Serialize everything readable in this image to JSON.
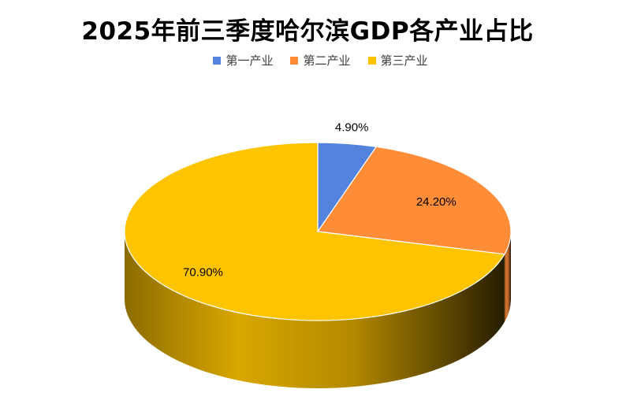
{
  "title": "2025年前三季度哈尔滨GDP各产业占比",
  "chart_data": {
    "type": "pie",
    "title": "2025年前三季度哈尔滨GDP各产业占比",
    "categories": [
      "第一产业",
      "第二产业",
      "第三产业"
    ],
    "values": [
      4.9,
      24.2,
      70.9
    ],
    "labels": [
      "4.90%",
      "24.20%",
      "70.90%"
    ],
    "colors": [
      "#5383DC",
      "#FF8C37",
      "#FFC400"
    ],
    "legend_position": "top",
    "style": "3d"
  },
  "legend": [
    {
      "label": "第一产业",
      "color": "#5383DC"
    },
    {
      "label": "第二产业",
      "color": "#FF8C37"
    },
    {
      "label": "第三产业",
      "color": "#FFC400"
    }
  ]
}
